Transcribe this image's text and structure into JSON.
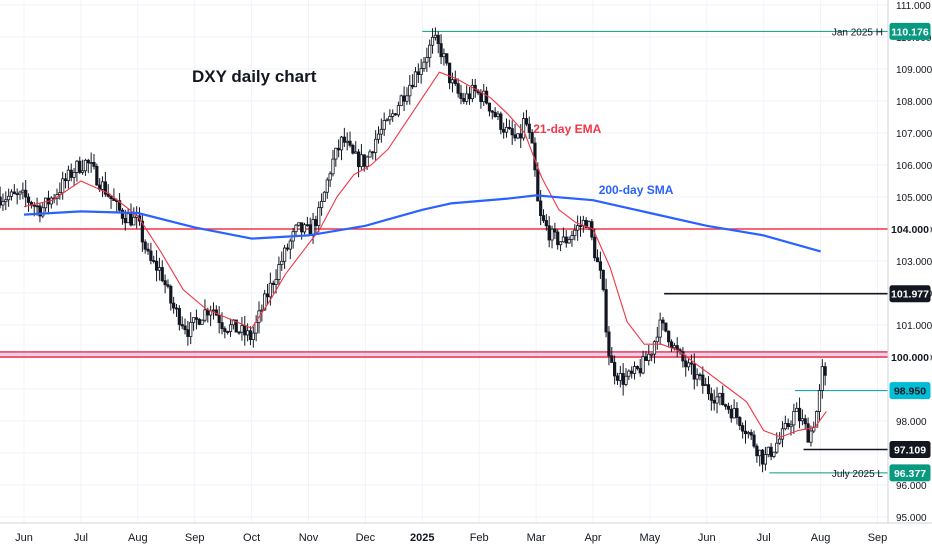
{
  "chart_data": {
    "type": "candlestick",
    "title": "DXY daily chart",
    "price_range": [
      94.5,
      111.2
    ],
    "price_ticks": [
      "111.000",
      "110.000",
      "109.000",
      "108.000",
      "107.000",
      "106.000",
      "105.000",
      "104.000",
      "103.000",
      "102.000",
      "101.000",
      "100.000",
      "99.000",
      "98.000",
      "97.000",
      "96.000",
      "95.000"
    ],
    "month_labels": [
      {
        "label": "Jun",
        "t": 0.0
      },
      {
        "label": "Jul",
        "t": 1.0
      },
      {
        "label": "Aug",
        "t": 2.0
      },
      {
        "label": "Sep",
        "t": 3.0
      },
      {
        "label": "Oct",
        "t": 4.0
      },
      {
        "label": "Nov",
        "t": 5.0
      },
      {
        "label": "Dec",
        "t": 6.0
      },
      {
        "label": "2025",
        "t": 7.0,
        "bold": true
      },
      {
        "label": "Feb",
        "t": 8.0
      },
      {
        "label": "Mar",
        "t": 9.0
      },
      {
        "label": "Apr",
        "t": 10.0
      },
      {
        "label": "May",
        "t": 11.0
      },
      {
        "label": "Jun",
        "t": 12.0
      },
      {
        "label": "Jul",
        "t": 13.0
      },
      {
        "label": "Aug",
        "t": 14.0
      },
      {
        "label": "Sep",
        "t": 15.0
      }
    ],
    "close_path": [
      [
        0.0,
        105.0
      ],
      [
        0.3,
        104.6
      ],
      [
        0.6,
        105.2
      ],
      [
        0.9,
        105.9
      ],
      [
        1.1,
        106.1
      ],
      [
        1.4,
        105.3
      ],
      [
        1.7,
        104.5
      ],
      [
        2.0,
        104.2
      ],
      [
        2.2,
        103.0
      ],
      [
        2.4,
        102.7
      ],
      [
        2.6,
        101.6
      ],
      [
        2.9,
        100.8
      ],
      [
        3.1,
        101.3
      ],
      [
        3.3,
        101.6
      ],
      [
        3.5,
        101.0
      ],
      [
        3.7,
        100.9
      ],
      [
        3.9,
        100.7
      ],
      [
        4.0,
        100.6
      ],
      [
        4.2,
        101.6
      ],
      [
        4.4,
        102.5
      ],
      [
        4.6,
        103.3
      ],
      [
        4.8,
        104.0
      ],
      [
        5.0,
        103.9
      ],
      [
        5.2,
        104.5
      ],
      [
        5.4,
        106.0
      ],
      [
        5.6,
        106.8
      ],
      [
        5.8,
        106.2
      ],
      [
        6.0,
        106.1
      ],
      [
        6.2,
        106.9
      ],
      [
        6.4,
        107.3
      ],
      [
        6.6,
        108.0
      ],
      [
        6.8,
        108.6
      ],
      [
        7.0,
        109.2
      ],
      [
        7.2,
        109.9
      ],
      [
        7.35,
        109.5
      ],
      [
        7.5,
        108.6
      ],
      [
        7.7,
        108.0
      ],
      [
        7.9,
        108.3
      ],
      [
        8.1,
        108.1
      ],
      [
        8.3,
        107.5
      ],
      [
        8.5,
        107.0
      ],
      [
        8.7,
        106.7
      ],
      [
        8.8,
        107.5
      ],
      [
        8.95,
        106.3
      ],
      [
        9.05,
        104.4
      ],
      [
        9.3,
        103.7
      ],
      [
        9.5,
        103.6
      ],
      [
        9.7,
        104.0
      ],
      [
        9.9,
        104.3
      ],
      [
        10.0,
        103.5
      ],
      [
        10.15,
        102.4
      ],
      [
        10.3,
        99.8
      ],
      [
        10.5,
        99.3
      ],
      [
        10.7,
        99.4
      ],
      [
        10.9,
        99.8
      ],
      [
        11.05,
        100.3
      ],
      [
        11.15,
        101.0
      ],
      [
        11.3,
        100.8
      ],
      [
        11.45,
        100.2
      ],
      [
        11.6,
        99.8
      ],
      [
        11.8,
        99.4
      ],
      [
        12.0,
        99.0
      ],
      [
        12.2,
        98.7
      ],
      [
        12.4,
        98.4
      ],
      [
        12.6,
        98.0
      ],
      [
        12.8,
        97.4
      ],
      [
        13.0,
        96.8
      ],
      [
        13.15,
        97.1
      ],
      [
        13.35,
        97.6
      ],
      [
        13.55,
        98.3
      ],
      [
        13.7,
        97.9
      ],
      [
        13.8,
        97.5
      ],
      [
        13.95,
        98.4
      ],
      [
        14.05,
        99.8
      ],
      [
        14.1,
        98.9
      ]
    ],
    "series": [
      {
        "name": "21-day EMA",
        "color": "#f23645",
        "points": [
          [
            0.0,
            104.7
          ],
          [
            0.5,
            104.9
          ],
          [
            1.0,
            105.5
          ],
          [
            1.5,
            105.1
          ],
          [
            2.0,
            104.4
          ],
          [
            2.4,
            103.3
          ],
          [
            2.8,
            102.1
          ],
          [
            3.2,
            101.5
          ],
          [
            3.6,
            101.2
          ],
          [
            4.0,
            100.9
          ],
          [
            4.3,
            101.7
          ],
          [
            4.6,
            102.6
          ],
          [
            4.9,
            103.3
          ],
          [
            5.2,
            104.0
          ],
          [
            5.5,
            105.0
          ],
          [
            5.8,
            105.7
          ],
          [
            6.1,
            106.0
          ],
          [
            6.4,
            106.5
          ],
          [
            6.7,
            107.3
          ],
          [
            7.0,
            108.1
          ],
          [
            7.3,
            108.9
          ],
          [
            7.6,
            108.7
          ],
          [
            7.9,
            108.4
          ],
          [
            8.2,
            108.1
          ],
          [
            8.5,
            107.6
          ],
          [
            8.8,
            107.0
          ],
          [
            9.1,
            105.6
          ],
          [
            9.4,
            104.6
          ],
          [
            9.7,
            104.2
          ],
          [
            10.0,
            104.0
          ],
          [
            10.3,
            102.8
          ],
          [
            10.6,
            101.1
          ],
          [
            10.9,
            100.4
          ],
          [
            11.2,
            100.4
          ],
          [
            11.5,
            100.2
          ],
          [
            11.8,
            99.8
          ],
          [
            12.1,
            99.4
          ],
          [
            12.4,
            99.0
          ],
          [
            12.7,
            98.6
          ],
          [
            13.0,
            97.7
          ],
          [
            13.3,
            97.5
          ],
          [
            13.6,
            97.7
          ],
          [
            13.9,
            97.8
          ],
          [
            14.1,
            98.3
          ]
        ]
      },
      {
        "name": "200-day SMA",
        "color": "#2962ff",
        "points": [
          [
            0.0,
            104.45
          ],
          [
            1.0,
            104.55
          ],
          [
            2.0,
            104.5
          ],
          [
            3.0,
            104.05
          ],
          [
            4.0,
            103.7
          ],
          [
            5.0,
            103.8
          ],
          [
            6.0,
            104.1
          ],
          [
            7.0,
            104.6
          ],
          [
            7.5,
            104.8
          ],
          [
            8.5,
            104.95
          ],
          [
            9.0,
            105.05
          ],
          [
            10.0,
            104.9
          ],
          [
            11.0,
            104.5
          ],
          [
            12.0,
            104.1
          ],
          [
            13.0,
            103.8
          ],
          [
            14.0,
            103.3
          ]
        ]
      }
    ],
    "levels": [
      {
        "value": 104.0,
        "color": "#f23645",
        "from_t": -0.6,
        "label": "104.000",
        "badge": "#ffffff",
        "badge_text": "#131722",
        "width": 1.4
      },
      {
        "value": 101.977,
        "color": "#131722",
        "from_t": 11.25,
        "label": "101.977",
        "badge": "#131722",
        "badge_text": "#ffffff",
        "width": 1.6
      },
      {
        "value": 100.157,
        "color": "#f23645",
        "from_t": -0.6,
        "label": "100.157",
        "badge": "#ffffff",
        "badge_text": "#131722",
        "width": 1.4
      },
      {
        "value": 100.0,
        "color": "#f23645",
        "from_t": -0.6,
        "label": "100.000",
        "badge": "#ffffff",
        "badge_text": "#131722",
        "width": 1.4
      },
      {
        "value": 98.95,
        "color": "#0097a7",
        "from_t": 13.55,
        "label": "98.950",
        "badge": "#00bcd4",
        "badge_text": "#131722",
        "width": 1.0
      },
      {
        "value": 97.109,
        "color": "#131722",
        "from_t": 13.7,
        "label": "97.109",
        "badge": "#131722",
        "badge_text": "#ffffff",
        "width": 1.6
      }
    ],
    "lines": [
      {
        "value": 110.176,
        "color": "#089981",
        "from_t": 7.0,
        "note": "Jan 2025 H",
        "label": "110.176",
        "badge": "#089981",
        "badge_text": "#ffffff"
      },
      {
        "value": 96.377,
        "color": "#089981",
        "from_t": 13.1,
        "note": "July 2025 L",
        "label": "96.377",
        "badge": "#089981",
        "badge_text": "#ffffff"
      }
    ],
    "zone": {
      "from": 100.0,
      "to": 100.157,
      "color": "#e1bee7"
    },
    "annotations": [
      {
        "text": "21-day EMA",
        "color": "#f23645",
        "t": 8.95,
        "value": 107.0
      },
      {
        "text": "200-day SMA",
        "color": "#2962ff",
        "t": 10.1,
        "value": 105.1
      }
    ],
    "grid": true
  }
}
